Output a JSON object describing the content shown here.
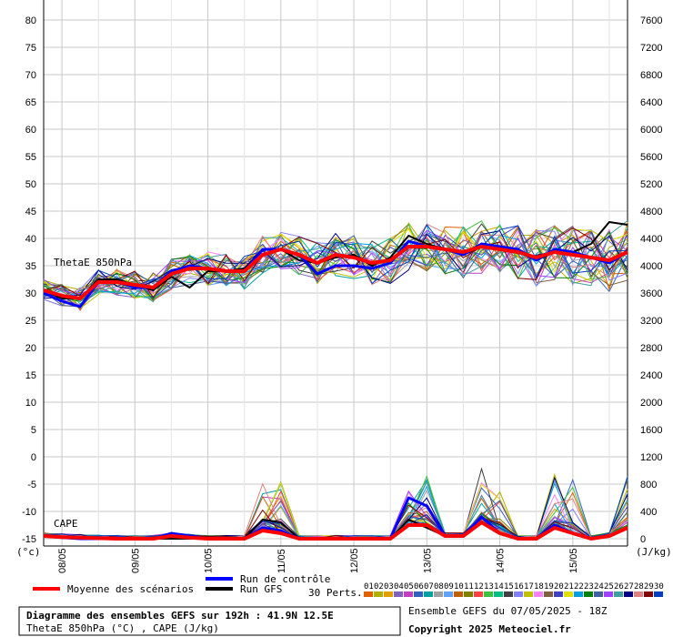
{
  "chart_data": {
    "type": "line",
    "title": "Diagramme des ensembles GEFS sur 192h : 41.9N 12.5E",
    "subtitle": "ThetaE 850hPa (°C) , CAPE (J/kg)",
    "run_info": "Ensemble GEFS du 07/05/2025 - 18Z",
    "copyright": "Copyright 2025 Meteociel.fr",
    "left_axis_unit": "(°c)",
    "right_axis_unit": "(J/kg)",
    "left_ticks": [
      "80",
      "75",
      "70",
      "65",
      "60",
      "55",
      "50",
      "45",
      "40",
      "35",
      "30",
      "25",
      "20",
      "15",
      "10",
      "5",
      "0",
      "-5",
      "-10",
      "-15"
    ],
    "right_ticks": [
      "7600",
      "7200",
      "6800",
      "6400",
      "6000",
      "5600",
      "5200",
      "4800",
      "4400",
      "4000",
      "3600",
      "3200",
      "2800",
      "2400",
      "2000",
      "1600",
      "1200",
      "800",
      "400",
      "0"
    ],
    "ylim_left": [
      -15,
      80
    ],
    "ylim_right": [
      0,
      7600
    ],
    "x_hours": [
      0,
      6,
      12,
      18,
      24,
      30,
      36,
      42,
      48,
      54,
      60,
      66,
      72,
      78,
      84,
      90,
      96,
      102,
      108,
      114,
      120,
      126,
      132,
      138,
      144,
      150,
      156,
      162,
      168,
      174,
      180,
      186,
      192
    ],
    "date_labels": [
      {
        "label": "08/05",
        "hour": 6
      },
      {
        "label": "09/05",
        "hour": 30
      },
      {
        "label": "10/05",
        "hour": 54
      },
      {
        "label": "11/05",
        "hour": 78
      },
      {
        "label": "12/05",
        "hour": 102
      },
      {
        "label": "13/05",
        "hour": 126
      },
      {
        "label": "14/05",
        "hour": 150
      },
      {
        "label": "15/05",
        "hour": 174
      }
    ],
    "annotations": {
      "thetae": "ThetaE 850hPa",
      "cape": "CAPE"
    },
    "legend": {
      "mean": "Moyenne des scénarios",
      "control": "Run de contrôle",
      "gfs": "Run GFS",
      "perts": "30 Perts.",
      "pert_numbers": [
        "01",
        "02",
        "03",
        "04",
        "05",
        "06",
        "07",
        "08",
        "09",
        "10",
        "11",
        "12",
        "13",
        "14",
        "15",
        "16",
        "17",
        "18",
        "19",
        "20",
        "21",
        "22",
        "23",
        "24",
        "25",
        "26",
        "27",
        "28",
        "29",
        "30"
      ],
      "pert_colors": [
        "#e06000",
        "#b0b000",
        "#e0a000",
        "#8060c0",
        "#c040c0",
        "#3060c0",
        "#00a0a0",
        "#a0a0a0",
        "#60a0ff",
        "#c06000",
        "#808000",
        "#ff4040",
        "#40c040",
        "#00c080",
        "#404040",
        "#8080ff",
        "#c0c000",
        "#ff80ff",
        "#806040",
        "#4040c0",
        "#e0e000",
        "#00a0e0",
        "#008000",
        "#4060a0",
        "#a040ff",
        "#40a0a0",
        "#000080",
        "#e08080",
        "#800000",
        "#0040c0"
      ]
    },
    "series": [
      {
        "name": "Moyenne des scénarios",
        "color": "#ff0000",
        "thetae": [
          30.5,
          29.5,
          29,
          32,
          32,
          31.5,
          31,
          33.5,
          34.5,
          34.5,
          34,
          34,
          37,
          38,
          37,
          35.5,
          37,
          36.5,
          35.5,
          36,
          38.5,
          38.5,
          38,
          37.5,
          38.5,
          38,
          37.5,
          36.5,
          37.5,
          37,
          36.5,
          36,
          37.5
        ],
        "cape": [
          -14.5,
          -14.7,
          -14.8,
          -14.9,
          -15,
          -15,
          -15,
          -14.5,
          -14.8,
          -15,
          -15,
          -15,
          -13.5,
          -14,
          -15,
          -15,
          -15,
          -15,
          -15,
          -15,
          -12.5,
          -12.5,
          -14.5,
          -14.5,
          -12,
          -14,
          -15,
          -15,
          -13,
          -14,
          -15,
          -14.5,
          -13
        ]
      },
      {
        "name": "Run de contrôle",
        "color": "#0000ff",
        "thetae": [
          30,
          28.5,
          27.5,
          32,
          32,
          31,
          31,
          34,
          35,
          34.5,
          34,
          34,
          38,
          38,
          37,
          33.5,
          35,
          35,
          34.5,
          35.5,
          39.5,
          38.5,
          38,
          37,
          39,
          38.5,
          38,
          36,
          38,
          37.5,
          36.5,
          35.5,
          37.5
        ],
        "cape": [
          -14.5,
          -14.8,
          -15,
          -15,
          -15,
          -15,
          -15,
          -14,
          -14.5,
          -15,
          -15,
          -15,
          -13,
          -13.5,
          -15,
          -15,
          -15,
          -15,
          -15,
          -15,
          -7.5,
          -9,
          -14.5,
          -14.5,
          -11,
          -14,
          -15,
          -15,
          -12.5,
          -14,
          -15,
          -14.5,
          -13
        ]
      },
      {
        "name": "Run GFS",
        "color": "#000000",
        "thetae": [
          30.5,
          29,
          29,
          32.5,
          32.5,
          31.5,
          30.5,
          33,
          31,
          34,
          34,
          34.5,
          38,
          38,
          36,
          35.5,
          36.5,
          37,
          35,
          36.5,
          40.5,
          39,
          38,
          37,
          38.5,
          38,
          37.5,
          36,
          37.5,
          37.5,
          39,
          43,
          42.5
        ],
        "cape": [
          -14.5,
          -14.7,
          -14.9,
          -15,
          -15,
          -15,
          -15,
          -15,
          -15,
          -15,
          -15,
          -15,
          -11.5,
          -12,
          -15,
          -15,
          -15,
          -15,
          -15,
          -15,
          -11.5,
          -13,
          -14.5,
          -14.5,
          -11,
          -14,
          -15,
          -15,
          -13,
          -14,
          -15,
          -14.5,
          -13
        ]
      }
    ]
  }
}
